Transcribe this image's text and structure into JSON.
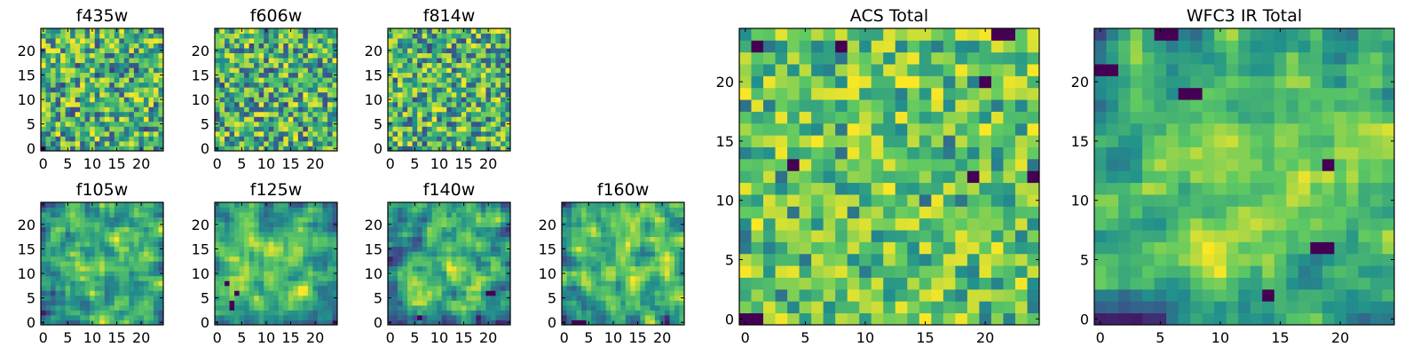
{
  "chart_data": [
    {
      "type": "heatmap",
      "title": "f435w",
      "xticks": [
        "0",
        "5",
        "10",
        "15",
        "20"
      ],
      "yticks": [
        "0",
        "5",
        "10",
        "15",
        "20"
      ],
      "xlim": [
        -0.5,
        24.5
      ],
      "ylim": [
        -0.5,
        24.5
      ],
      "grid_size": [
        25,
        25
      ],
      "colormap": "viridis",
      "pattern": "noise",
      "seed": 11,
      "low_pixels": [
        [
          0,
          0
        ]
      ]
    },
    {
      "type": "heatmap",
      "title": "f606w",
      "xticks": [
        "0",
        "5",
        "10",
        "15",
        "20"
      ],
      "yticks": [
        "0",
        "5",
        "10",
        "15",
        "20"
      ],
      "xlim": [
        -0.5,
        24.5
      ],
      "ylim": [
        -0.5,
        24.5
      ],
      "grid_size": [
        25,
        25
      ],
      "colormap": "viridis",
      "pattern": "noise",
      "seed": 23,
      "low_pixels": []
    },
    {
      "type": "heatmap",
      "title": "f814w",
      "xticks": [
        "0",
        "5",
        "10",
        "15",
        "20"
      ],
      "yticks": [
        "0",
        "5",
        "10",
        "15",
        "20"
      ],
      "xlim": [
        -0.5,
        24.5
      ],
      "ylim": [
        -0.5,
        24.5
      ],
      "grid_size": [
        25,
        25
      ],
      "colormap": "viridis",
      "pattern": "noise",
      "seed": 37,
      "low_pixels": []
    },
    {
      "type": "heatmap",
      "title": "f105w",
      "xticks": [
        "0",
        "5",
        "10",
        "15",
        "20"
      ],
      "yticks": [
        "0",
        "5",
        "10",
        "15",
        "20"
      ],
      "xlim": [
        -0.5,
        24.5
      ],
      "ylim": [
        -0.5,
        24.5
      ],
      "grid_size": [
        25,
        25
      ],
      "colormap": "viridis",
      "pattern": "smooth",
      "seed": 41,
      "low_pixels": []
    },
    {
      "type": "heatmap",
      "title": "f125w",
      "xticks": [
        "0",
        "5",
        "10",
        "15",
        "20"
      ],
      "yticks": [
        "0",
        "5",
        "10",
        "15",
        "20"
      ],
      "xlim": [
        -0.5,
        24.5
      ],
      "ylim": [
        -0.5,
        24.5
      ],
      "grid_size": [
        25,
        25
      ],
      "colormap": "viridis",
      "pattern": "smooth",
      "seed": 53,
      "low_pixels": [
        [
          3,
          3
        ],
        [
          3,
          4
        ],
        [
          4,
          6
        ],
        [
          2,
          8
        ]
      ]
    },
    {
      "type": "heatmap",
      "title": "f140w",
      "xticks": [
        "0",
        "5",
        "10",
        "15",
        "20"
      ],
      "yticks": [
        "0",
        "5",
        "10",
        "15",
        "20"
      ],
      "xlim": [
        -0.5,
        24.5
      ],
      "ylim": [
        -0.5,
        24.5
      ],
      "grid_size": [
        25,
        25
      ],
      "colormap": "viridis",
      "pattern": "smooth",
      "seed": 67,
      "low_pixels": [
        [
          6,
          1
        ],
        [
          20,
          6
        ],
        [
          21,
          6
        ]
      ]
    },
    {
      "type": "heatmap",
      "title": "f160w",
      "xticks": [
        "0",
        "5",
        "10",
        "15",
        "20"
      ],
      "yticks": [
        "0",
        "5",
        "10",
        "15",
        "20"
      ],
      "xlim": [
        -0.5,
        24.5
      ],
      "ylim": [
        -0.5,
        24.5
      ],
      "grid_size": [
        25,
        25
      ],
      "colormap": "viridis",
      "pattern": "smooth",
      "seed": 79,
      "low_pixels": [
        [
          2,
          0
        ],
        [
          3,
          0
        ],
        [
          4,
          0
        ]
      ]
    },
    {
      "type": "heatmap",
      "title": "ACS Total",
      "xticks": [
        "0",
        "5",
        "10",
        "15",
        "20"
      ],
      "yticks": [
        "0",
        "5",
        "10",
        "15",
        "20"
      ],
      "xlim": [
        -0.5,
        24.5
      ],
      "ylim": [
        -0.5,
        24.5
      ],
      "grid_size": [
        25,
        25
      ],
      "colormap": "viridis",
      "pattern": "blocky",
      "seed": 89,
      "low_pixels": [
        [
          0,
          0
        ],
        [
          1,
          0
        ],
        [
          1,
          23
        ],
        [
          8,
          23
        ],
        [
          21,
          24
        ],
        [
          22,
          24
        ],
        [
          4,
          13
        ],
        [
          19,
          12
        ],
        [
          24,
          12
        ],
        [
          20,
          20
        ]
      ]
    },
    {
      "type": "heatmap",
      "title": "WFC3 IR Total",
      "xticks": [
        "0",
        "5",
        "10",
        "15",
        "20"
      ],
      "yticks": [
        "0",
        "5",
        "10",
        "15",
        "20"
      ],
      "xlim": [
        -0.5,
        24.5
      ],
      "ylim": [
        -0.5,
        24.5
      ],
      "grid_size": [
        25,
        25
      ],
      "colormap": "viridis",
      "pattern": "smooth",
      "seed": 97,
      "low_pixels": [
        [
          5,
          24
        ],
        [
          6,
          24
        ],
        [
          0,
          21
        ],
        [
          1,
          21
        ],
        [
          7,
          19
        ],
        [
          8,
          19
        ],
        [
          19,
          13
        ],
        [
          18,
          6
        ],
        [
          19,
          6
        ],
        [
          14,
          2
        ]
      ]
    }
  ],
  "colormap_stops": [
    "#440154",
    "#3b528b",
    "#21918c",
    "#5ec962",
    "#fde725"
  ]
}
